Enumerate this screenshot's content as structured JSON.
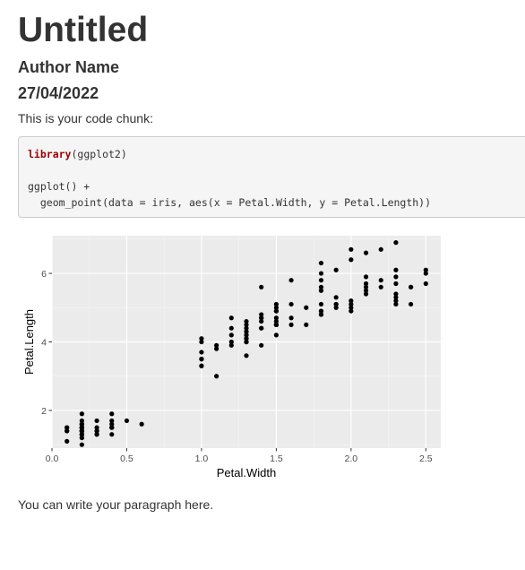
{
  "document": {
    "title": "Untitled",
    "author": "Author Name",
    "date": "27/04/2022",
    "intro_text": "This is your code chunk:",
    "closing_text": "You can write your paragraph here."
  },
  "code_chunk": {
    "line1_function": "library",
    "line1_args": "(ggplot2)",
    "line2": "ggplot() +",
    "line3": "  geom_point(data = iris, aes(x = Petal.Width, y = Petal.Length))",
    "function_color": "#990000"
  },
  "chart_data": {
    "type": "scatter",
    "xlabel": "Petal.Width",
    "ylabel": "Petal.Length",
    "xlim": [
      0.0,
      2.6
    ],
    "ylim": [
      0.9,
      7.1
    ],
    "x_ticks": [
      "0.0",
      "0.5",
      "1.0",
      "1.5",
      "2.0",
      "2.5"
    ],
    "y_ticks": [
      "2",
      "4",
      "6"
    ],
    "grid": true,
    "legend": "none",
    "panel_background": "#ebebeb",
    "point_color": "#000000",
    "points": [
      [
        0.2,
        1.4
      ],
      [
        0.2,
        1.4
      ],
      [
        0.2,
        1.3
      ],
      [
        0.2,
        1.5
      ],
      [
        0.2,
        1.4
      ],
      [
        0.4,
        1.7
      ],
      [
        0.3,
        1.4
      ],
      [
        0.2,
        1.5
      ],
      [
        0.2,
        1.4
      ],
      [
        0.1,
        1.5
      ],
      [
        0.2,
        1.5
      ],
      [
        0.2,
        1.6
      ],
      [
        0.1,
        1.4
      ],
      [
        0.1,
        1.1
      ],
      [
        0.2,
        1.2
      ],
      [
        0.4,
        1.5
      ],
      [
        0.4,
        1.3
      ],
      [
        0.3,
        1.4
      ],
      [
        0.3,
        1.7
      ],
      [
        0.3,
        1.5
      ],
      [
        0.2,
        1.7
      ],
      [
        0.4,
        1.5
      ],
      [
        0.2,
        1.0
      ],
      [
        0.5,
        1.7
      ],
      [
        0.2,
        1.9
      ],
      [
        0.2,
        1.6
      ],
      [
        0.4,
        1.6
      ],
      [
        0.2,
        1.5
      ],
      [
        0.2,
        1.4
      ],
      [
        0.2,
        1.6
      ],
      [
        0.2,
        1.6
      ],
      [
        0.4,
        1.5
      ],
      [
        0.1,
        1.5
      ],
      [
        0.2,
        1.4
      ],
      [
        0.2,
        1.5
      ],
      [
        0.2,
        1.2
      ],
      [
        0.2,
        1.3
      ],
      [
        0.1,
        1.4
      ],
      [
        0.2,
        1.3
      ],
      [
        0.2,
        1.5
      ],
      [
        0.3,
        1.3
      ],
      [
        0.3,
        1.3
      ],
      [
        0.2,
        1.3
      ],
      [
        0.6,
        1.6
      ],
      [
        0.4,
        1.9
      ],
      [
        0.3,
        1.4
      ],
      [
        0.2,
        1.6
      ],
      [
        0.2,
        1.4
      ],
      [
        0.2,
        1.5
      ],
      [
        0.2,
        1.4
      ],
      [
        1.4,
        4.7
      ],
      [
        1.5,
        4.5
      ],
      [
        1.5,
        4.9
      ],
      [
        1.3,
        4.0
      ],
      [
        1.5,
        4.6
      ],
      [
        1.3,
        4.5
      ],
      [
        1.6,
        4.7
      ],
      [
        1.0,
        3.3
      ],
      [
        1.3,
        4.6
      ],
      [
        1.4,
        3.9
      ],
      [
        1.0,
        3.5
      ],
      [
        1.5,
        4.2
      ],
      [
        1.0,
        4.0
      ],
      [
        1.4,
        4.7
      ],
      [
        1.3,
        3.6
      ],
      [
        1.4,
        4.4
      ],
      [
        1.5,
        4.5
      ],
      [
        1.0,
        4.1
      ],
      [
        1.5,
        4.5
      ],
      [
        1.1,
        3.9
      ],
      [
        1.8,
        4.8
      ],
      [
        1.3,
        4.0
      ],
      [
        1.5,
        4.9
      ],
      [
        1.2,
        4.7
      ],
      [
        1.3,
        4.3
      ],
      [
        1.4,
        4.4
      ],
      [
        1.4,
        4.8
      ],
      [
        1.7,
        5.0
      ],
      [
        1.5,
        4.5
      ],
      [
        1.0,
        3.5
      ],
      [
        1.1,
        3.8
      ],
      [
        1.0,
        3.7
      ],
      [
        1.2,
        3.9
      ],
      [
        1.6,
        5.1
      ],
      [
        1.5,
        4.5
      ],
      [
        1.6,
        4.5
      ],
      [
        1.5,
        4.7
      ],
      [
        1.3,
        4.4
      ],
      [
        1.3,
        4.1
      ],
      [
        1.3,
        4.0
      ],
      [
        1.2,
        4.4
      ],
      [
        1.4,
        4.6
      ],
      [
        1.2,
        4.0
      ],
      [
        1.0,
        3.3
      ],
      [
        1.3,
        4.2
      ],
      [
        1.2,
        4.2
      ],
      [
        1.3,
        4.2
      ],
      [
        1.3,
        4.3
      ],
      [
        1.1,
        3.0
      ],
      [
        1.3,
        4.1
      ],
      [
        2.5,
        6.0
      ],
      [
        1.9,
        5.1
      ],
      [
        2.1,
        5.9
      ],
      [
        1.8,
        5.6
      ],
      [
        2.2,
        5.8
      ],
      [
        2.1,
        6.6
      ],
      [
        1.7,
        4.5
      ],
      [
        1.8,
        6.3
      ],
      [
        1.8,
        5.8
      ],
      [
        2.5,
        6.1
      ],
      [
        2.0,
        5.1
      ],
      [
        1.9,
        5.3
      ],
      [
        2.1,
        5.5
      ],
      [
        2.0,
        5.0
      ],
      [
        2.4,
        5.1
      ],
      [
        2.3,
        5.3
      ],
      [
        1.8,
        5.5
      ],
      [
        2.2,
        6.7
      ],
      [
        2.3,
        6.9
      ],
      [
        1.5,
        5.0
      ],
      [
        2.3,
        5.7
      ],
      [
        2.0,
        4.9
      ],
      [
        2.0,
        6.7
      ],
      [
        1.8,
        4.9
      ],
      [
        2.1,
        5.7
      ],
      [
        1.8,
        6.0
      ],
      [
        1.8,
        4.8
      ],
      [
        1.8,
        4.9
      ],
      [
        2.1,
        5.6
      ],
      [
        1.6,
        5.8
      ],
      [
        1.9,
        6.1
      ],
      [
        2.0,
        6.4
      ],
      [
        2.2,
        5.6
      ],
      [
        1.5,
        5.1
      ],
      [
        1.4,
        5.6
      ],
      [
        2.3,
        6.1
      ],
      [
        2.4,
        5.6
      ],
      [
        1.8,
        5.5
      ],
      [
        1.8,
        4.8
      ],
      [
        2.1,
        5.4
      ],
      [
        2.4,
        5.6
      ],
      [
        2.3,
        5.1
      ],
      [
        1.9,
        5.1
      ],
      [
        2.3,
        5.9
      ],
      [
        2.5,
        5.7
      ],
      [
        2.3,
        5.2
      ],
      [
        1.9,
        5.0
      ],
      [
        2.0,
        5.2
      ],
      [
        2.3,
        5.4
      ],
      [
        1.8,
        5.1
      ]
    ]
  }
}
